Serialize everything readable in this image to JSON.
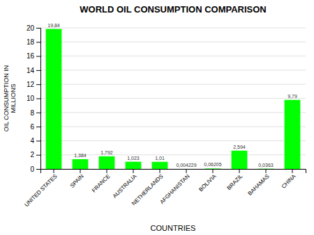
{
  "chart_data": {
    "type": "bar",
    "title": "WORLD OIL CONSUMPTION COMPARISON",
    "xlabel": "COUNTRIES",
    "ylabel": "OIL CONSUMPTION IN\nMILLIONS",
    "categories": [
      "UNITED STATES",
      "SPAIN",
      "FRANCE",
      "AUSTRALIA",
      "NETHERLANDS",
      "AFGHANISTAN",
      "BOLIVIA",
      "BRAZIL",
      "BAHAMAS",
      "CHINA"
    ],
    "values": [
      19.84,
      1.384,
      1.792,
      1.023,
      1.01,
      0.004229,
      0.06205,
      2.594,
      0.0363,
      9.79
    ],
    "value_labels": [
      "19,84",
      "1,384",
      "1,792",
      "1,023",
      "1,01",
      "0,004229",
      "0,06205",
      "2,594",
      "0,0363",
      "9,79"
    ],
    "data_labels": true,
    "color": "#00ff00",
    "ylim": [
      0,
      20
    ],
    "yticks": [
      0,
      2,
      4,
      6,
      8,
      10,
      12,
      14,
      16,
      18,
      20
    ],
    "grid": true
  }
}
